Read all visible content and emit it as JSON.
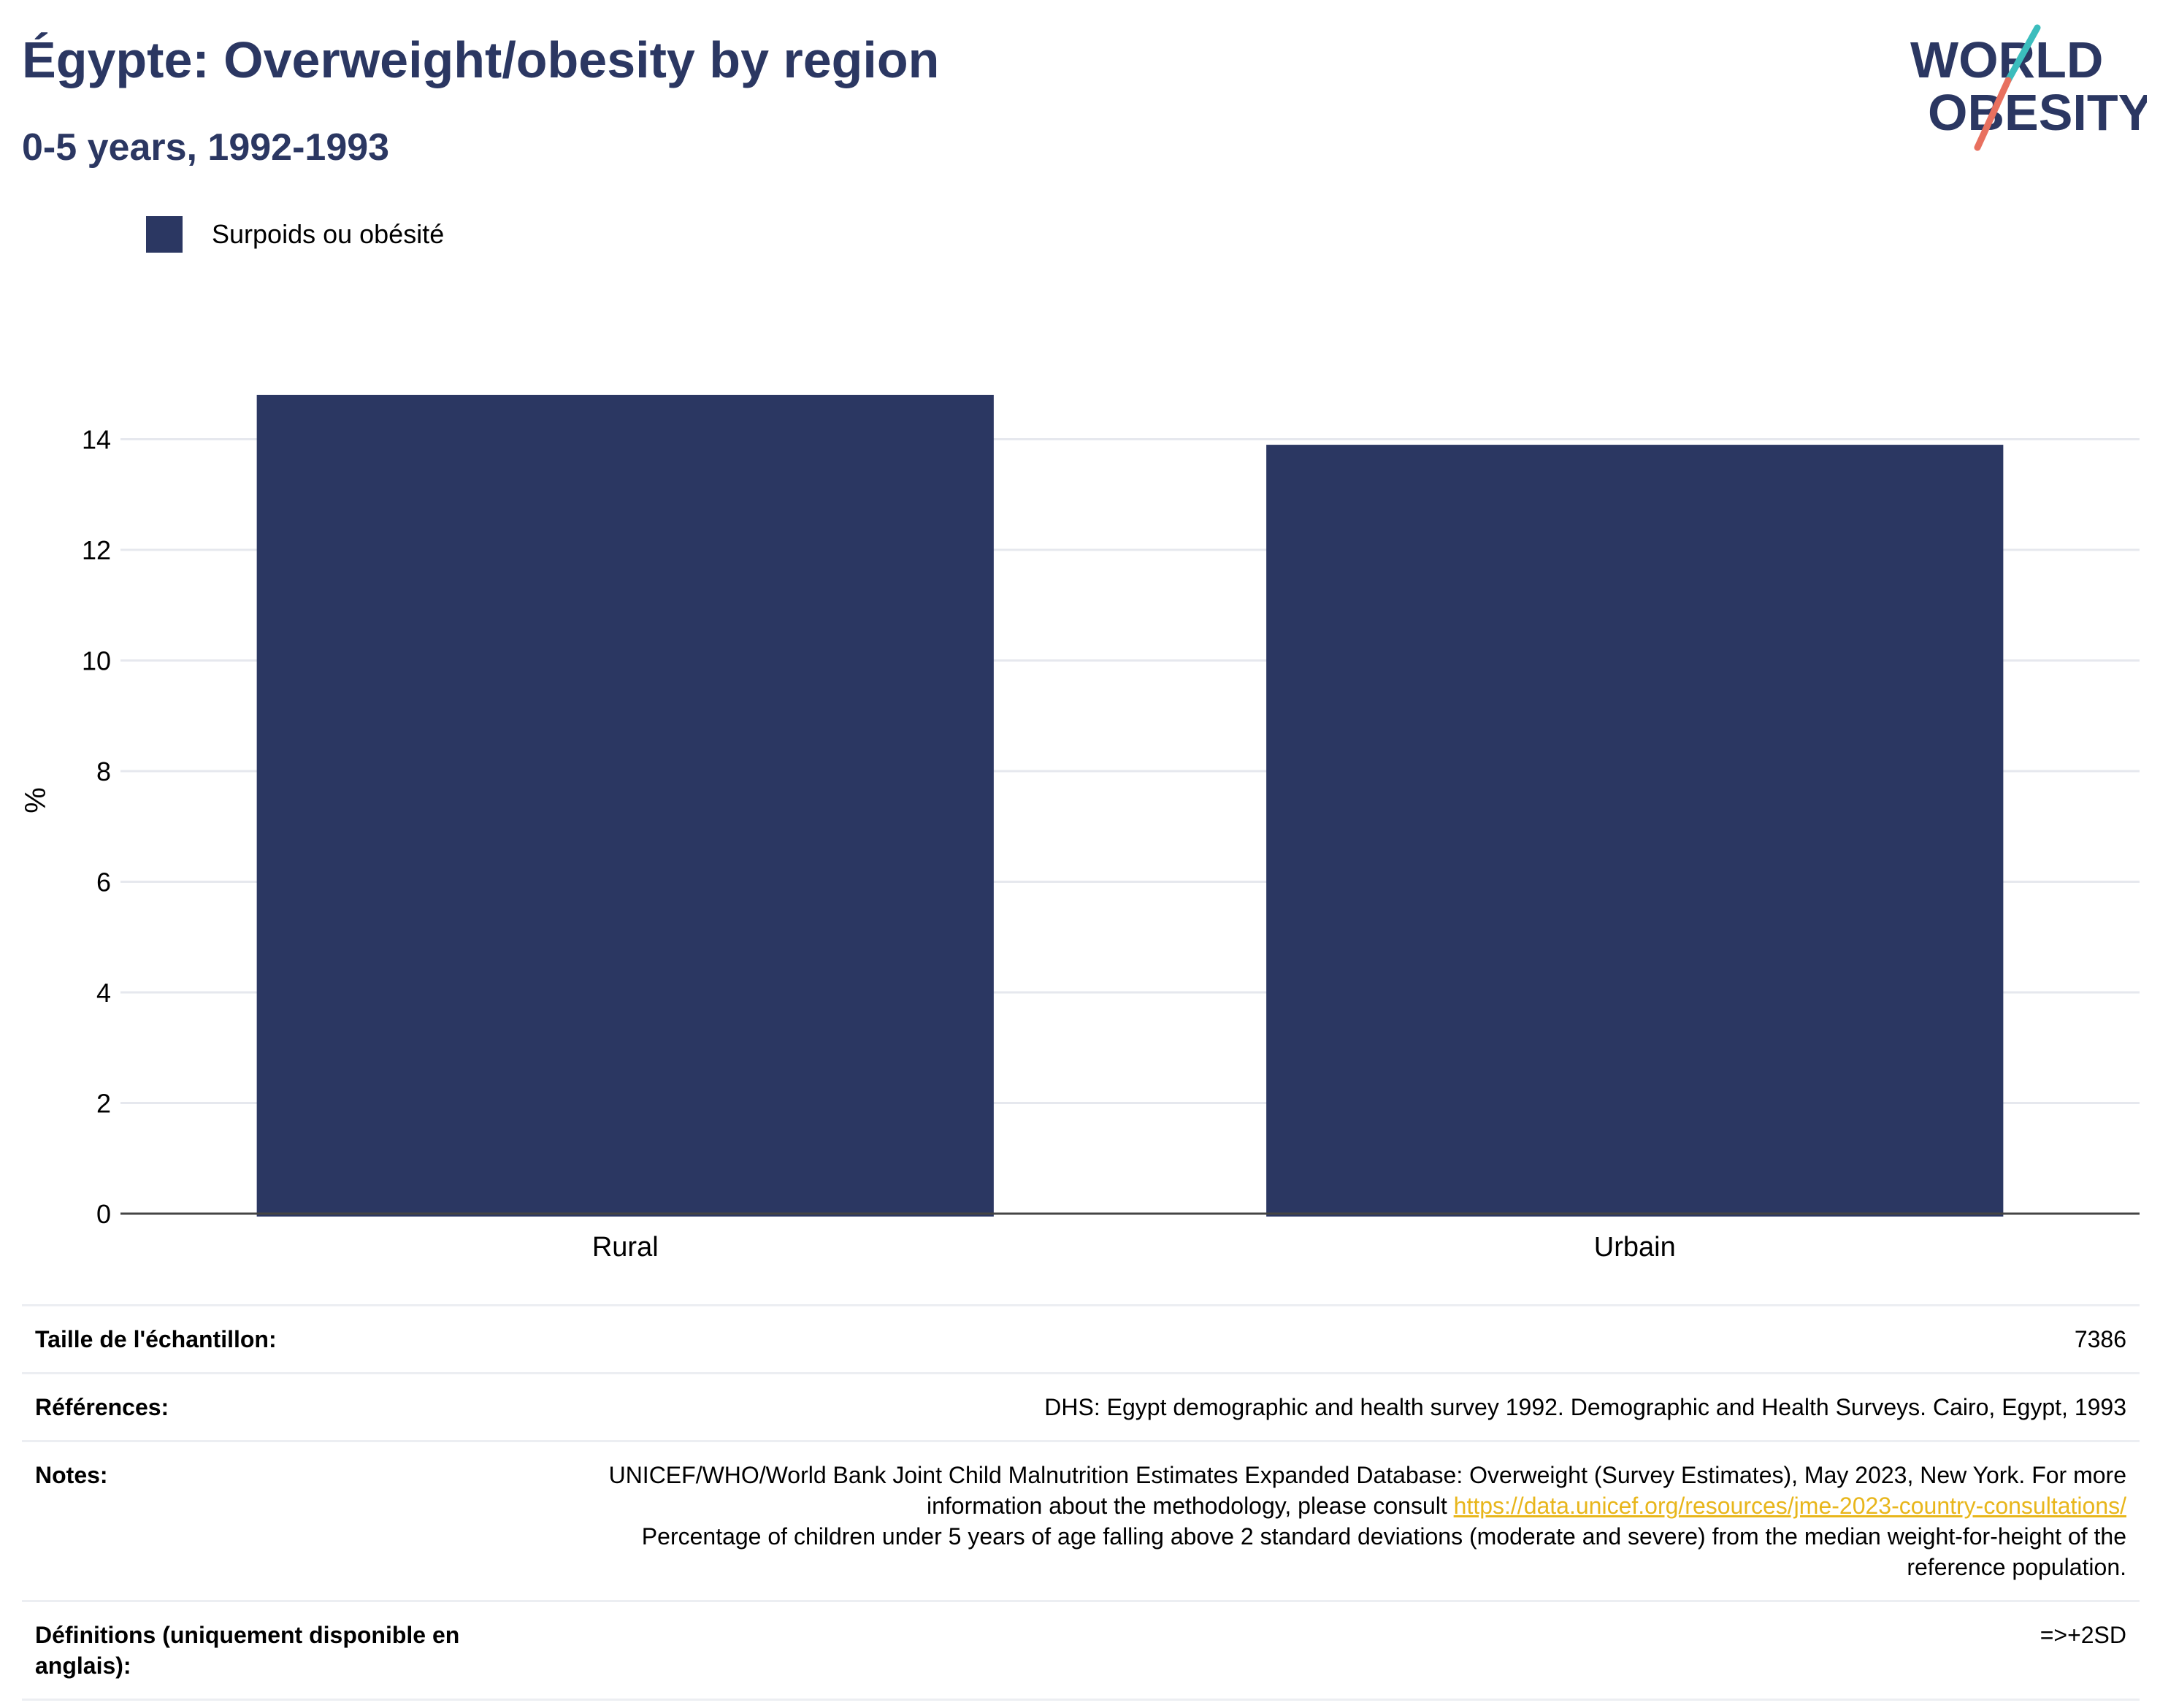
{
  "header": {
    "title": "Égypte: Overweight/obesity by region",
    "subtitle": "0-5 years, 1992-1993"
  },
  "logo": {
    "line1": "WORLD",
    "line2": "OBESITY",
    "colors": {
      "text": "#2b3762",
      "slash_top": "#3bbdbd",
      "slash_bottom": "#e8705f"
    }
  },
  "legend": {
    "items": [
      {
        "label": "Surpoids ou obésité",
        "color": "#2b3762"
      }
    ]
  },
  "chart_data": {
    "type": "bar",
    "categories": [
      "Rural",
      "Urbain"
    ],
    "series": [
      {
        "name": "Surpoids ou obésité",
        "values": [
          14.8,
          13.9
        ],
        "color": "#2b3762"
      }
    ],
    "ylabel": "%",
    "ylim": [
      0,
      16
    ],
    "yticks": [
      0,
      2,
      4,
      6,
      8,
      10,
      12,
      14
    ],
    "grid": true
  },
  "info": {
    "sample_size": {
      "label": "Taille de l'échantillon:",
      "value": "7386"
    },
    "references": {
      "label": "Références:",
      "value": "DHS: Egypt demographic and health survey 1992. Demographic and Health Surveys. Cairo, Egypt, 1993"
    },
    "notes": {
      "label": "Notes:",
      "text_before": "UNICEF/WHO/World Bank Joint Child Malnutrition Estimates Expanded Database: Overweight (Survey Estimates), May 2023, New York. For more information about the methodology, please consult ",
      "link": "https://data.unicef.org/resources/jme-2023-country-consultations/",
      "text_after": "Percentage of children under 5 years of age falling above 2 standard deviations (moderate and severe) from the median weight-for-height of the reference population."
    },
    "definitions": {
      "label": "Définitions (uniquement disponible en anglais):",
      "value": "=>+2SD"
    }
  }
}
